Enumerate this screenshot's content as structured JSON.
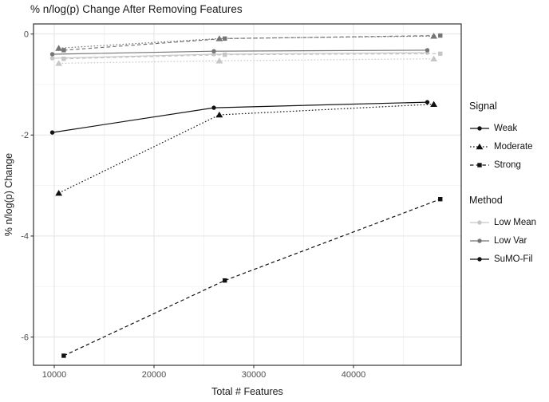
{
  "title": "% n/log(p) Change After Removing Features",
  "axes": {
    "x_title": "Total # Features",
    "y_title": "% n/log(p) Change",
    "x_tick_labels": [
      "10000",
      "20000",
      "30000",
      "40000"
    ],
    "y_tick_labels": [
      "0",
      "-2",
      "-4",
      "-6"
    ]
  },
  "colors": {
    "low_mean": "#c6c6c6",
    "low_var": "#757575",
    "sumo_fil": "#111111",
    "grid_major": "#e3e3e3",
    "grid_minor": "#f0f0f0",
    "panel_border": "#333333",
    "tick_label": "#4d4d4d"
  },
  "legend": {
    "signal": {
      "title": "Signal",
      "items": [
        {
          "label": "Weak",
          "marker": "circle",
          "linetype": "solid",
          "color": "#111111"
        },
        {
          "label": "Moderate",
          "marker": "triangle",
          "linetype": "dotted",
          "color": "#111111"
        },
        {
          "label": "Strong",
          "marker": "square",
          "linetype": "dashed",
          "color": "#111111"
        }
      ]
    },
    "method": {
      "title": "Method",
      "items": [
        {
          "label": "Low Mean",
          "marker": "circle",
          "linetype": "solid",
          "color": "#c6c6c6"
        },
        {
          "label": "Low Var",
          "marker": "circle",
          "linetype": "solid",
          "color": "#757575"
        },
        {
          "label": "SuMO-Fil",
          "marker": "circle",
          "linetype": "solid",
          "color": "#111111"
        }
      ]
    }
  },
  "chart_data": {
    "type": "line",
    "title": "% n/log(p) Change After Removing Features",
    "xlabel": "Total # Features",
    "ylabel": "% n/log(p) Change",
    "xlim": [
      7920,
      50800
    ],
    "ylim": [
      -6.56,
      0.2
    ],
    "x_major_ticks": [
      10000,
      20000,
      30000,
      40000
    ],
    "x_minor_ticks": [
      15000,
      25000,
      35000,
      45000
    ],
    "y_major_ticks": [
      0,
      -2,
      -4,
      -6
    ],
    "y_minor_ticks": [
      -1,
      -3,
      -5
    ],
    "grid": true,
    "legend_position": "right",
    "series": [
      {
        "method": "Low Mean",
        "signal": "Weak",
        "color": "#c6c6c6",
        "linetype": "solid",
        "marker": "circle",
        "x": [
          9800,
          26000,
          47400
        ],
        "y": [
          -0.48,
          -0.4,
          -0.37
        ]
      },
      {
        "method": "Low Mean",
        "signal": "Moderate",
        "color": "#c6c6c6",
        "linetype": "dotted",
        "marker": "triangle",
        "x": [
          10450,
          26550,
          48050
        ],
        "y": [
          -0.58,
          -0.53,
          -0.49
        ]
      },
      {
        "method": "Low Mean",
        "signal": "Strong",
        "color": "#c6c6c6",
        "linetype": "dashed",
        "marker": "square",
        "x": [
          10950,
          27100,
          48700
        ],
        "y": [
          -0.49,
          -0.41,
          -0.39
        ]
      },
      {
        "method": "Low Var",
        "signal": "Weak",
        "color": "#757575",
        "linetype": "solid",
        "marker": "circle",
        "x": [
          9800,
          26000,
          47400
        ],
        "y": [
          -0.4,
          -0.34,
          -0.32
        ]
      },
      {
        "method": "Low Var",
        "signal": "Moderate",
        "color": "#757575",
        "linetype": "dotted",
        "marker": "triangle",
        "x": [
          10450,
          26550,
          48050
        ],
        "y": [
          -0.28,
          -0.09,
          -0.04
        ]
      },
      {
        "method": "Low Var",
        "signal": "Strong",
        "color": "#757575",
        "linetype": "dashed",
        "marker": "square",
        "x": [
          10950,
          27100,
          48700
        ],
        "y": [
          -0.32,
          -0.09,
          -0.03
        ]
      },
      {
        "method": "SuMO-Fil",
        "signal": "Weak",
        "color": "#111111",
        "linetype": "solid",
        "marker": "circle",
        "x": [
          9800,
          26000,
          47400
        ],
        "y": [
          -1.95,
          -1.46,
          -1.35
        ]
      },
      {
        "method": "SuMO-Fil",
        "signal": "Moderate",
        "color": "#111111",
        "linetype": "dotted",
        "marker": "triangle",
        "x": [
          10450,
          26550,
          48050
        ],
        "y": [
          -3.15,
          -1.6,
          -1.39
        ]
      },
      {
        "method": "SuMO-Fil",
        "signal": "Strong",
        "color": "#111111",
        "linetype": "dashed",
        "marker": "square",
        "x": [
          10950,
          27100,
          48700
        ],
        "y": [
          -6.37,
          -4.88,
          -3.27
        ]
      }
    ]
  }
}
